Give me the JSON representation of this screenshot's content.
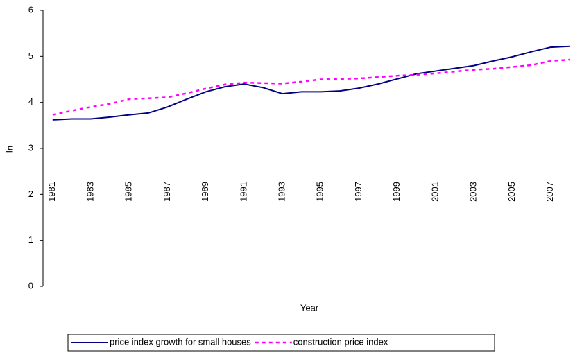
{
  "chart_data": {
    "type": "line",
    "y_label": "ln",
    "x_label": "Year",
    "categories": [
      "1981",
      null,
      "1983",
      null,
      "1985",
      null,
      "1987",
      null,
      "1989",
      null,
      "1991",
      null,
      "1993",
      null,
      "1995",
      null,
      "1997",
      null,
      "1999",
      null,
      "2001",
      null,
      "2003",
      null,
      "2005",
      null,
      "2007",
      null
    ],
    "series": [
      {
        "name": "price index growth for small houses",
        "color": "#000080",
        "dash": "solid",
        "values": [
          3.62,
          3.64,
          3.64,
          3.68,
          3.73,
          3.77,
          3.9,
          4.07,
          4.23,
          4.34,
          4.4,
          4.32,
          4.19,
          4.23,
          4.23,
          4.25,
          4.31,
          4.4,
          4.51,
          4.62,
          4.68,
          4.74,
          4.8,
          4.9,
          4.99,
          5.1,
          5.2,
          5.22
        ]
      },
      {
        "name": "construction price index",
        "color": "#ff00ff",
        "dash": "dashed",
        "values": [
          3.73,
          3.82,
          3.9,
          3.97,
          4.07,
          4.09,
          4.11,
          4.2,
          4.3,
          4.39,
          4.43,
          4.42,
          4.41,
          4.45,
          4.5,
          4.51,
          4.52,
          4.55,
          4.58,
          4.6,
          4.63,
          4.67,
          4.71,
          4.73,
          4.77,
          4.81,
          4.9,
          4.93
        ]
      }
    ],
    "ylim": [
      0,
      6
    ],
    "yticks": [
      0,
      1,
      2,
      3,
      4,
      5,
      6
    ],
    "grid": false,
    "legend": "bottom"
  }
}
